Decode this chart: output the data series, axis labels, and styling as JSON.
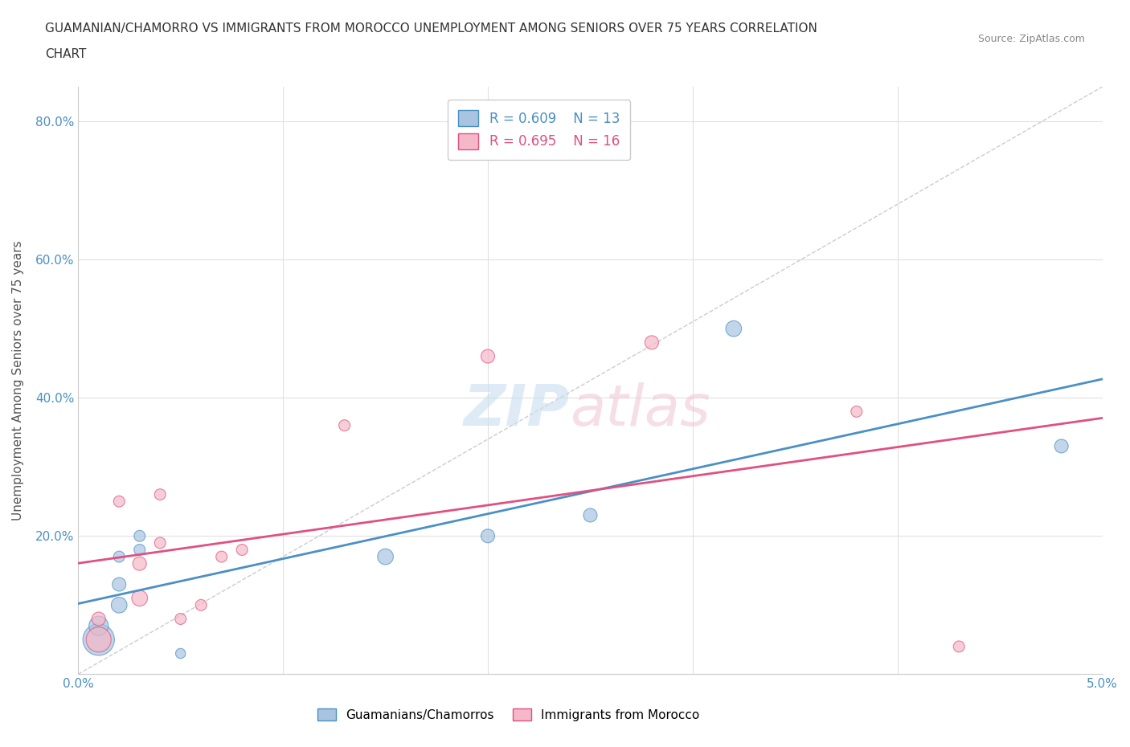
{
  "title_line1": "GUAMANIAN/CHAMORRO VS IMMIGRANTS FROM MOROCCO UNEMPLOYMENT AMONG SENIORS OVER 75 YEARS CORRELATION",
  "title_line2": "CHART",
  "source": "Source: ZipAtlas.com",
  "ylabel": "Unemployment Among Seniors over 75 years",
  "xlim": [
    0.0,
    0.05
  ],
  "ylim": [
    0.0,
    0.85
  ],
  "xticks": [
    0.0,
    0.01,
    0.02,
    0.03,
    0.04,
    0.05
  ],
  "xtick_labels": [
    "0.0%",
    "",
    "",
    "",
    "",
    "5.0%"
  ],
  "yticks": [
    0.0,
    0.2,
    0.4,
    0.6,
    0.8
  ],
  "ytick_labels": [
    "",
    "20.0%",
    "40.0%",
    "60.0%",
    "80.0%"
  ],
  "blue_R": 0.609,
  "blue_N": 13,
  "pink_R": 0.695,
  "pink_N": 16,
  "blue_color": "#a8c4e0",
  "pink_color": "#f4b8c8",
  "blue_line_color": "#4a90c4",
  "pink_line_color": "#e05080",
  "blue_x": [
    0.001,
    0.001,
    0.002,
    0.002,
    0.002,
    0.003,
    0.003,
    0.005,
    0.015,
    0.02,
    0.025,
    0.032,
    0.048
  ],
  "blue_y": [
    0.05,
    0.07,
    0.1,
    0.13,
    0.17,
    0.18,
    0.2,
    0.03,
    0.17,
    0.2,
    0.23,
    0.5,
    0.33
  ],
  "blue_size": [
    800,
    300,
    200,
    150,
    100,
    100,
    100,
    80,
    200,
    150,
    150,
    200,
    150
  ],
  "pink_x": [
    0.001,
    0.001,
    0.002,
    0.003,
    0.003,
    0.004,
    0.004,
    0.005,
    0.006,
    0.007,
    0.008,
    0.013,
    0.02,
    0.028,
    0.038,
    0.043
  ],
  "pink_y": [
    0.05,
    0.08,
    0.25,
    0.11,
    0.16,
    0.19,
    0.26,
    0.08,
    0.1,
    0.17,
    0.18,
    0.36,
    0.46,
    0.48,
    0.38,
    0.04
  ],
  "pink_size": [
    500,
    150,
    100,
    200,
    150,
    100,
    100,
    100,
    100,
    100,
    100,
    100,
    150,
    150,
    100,
    100
  ]
}
